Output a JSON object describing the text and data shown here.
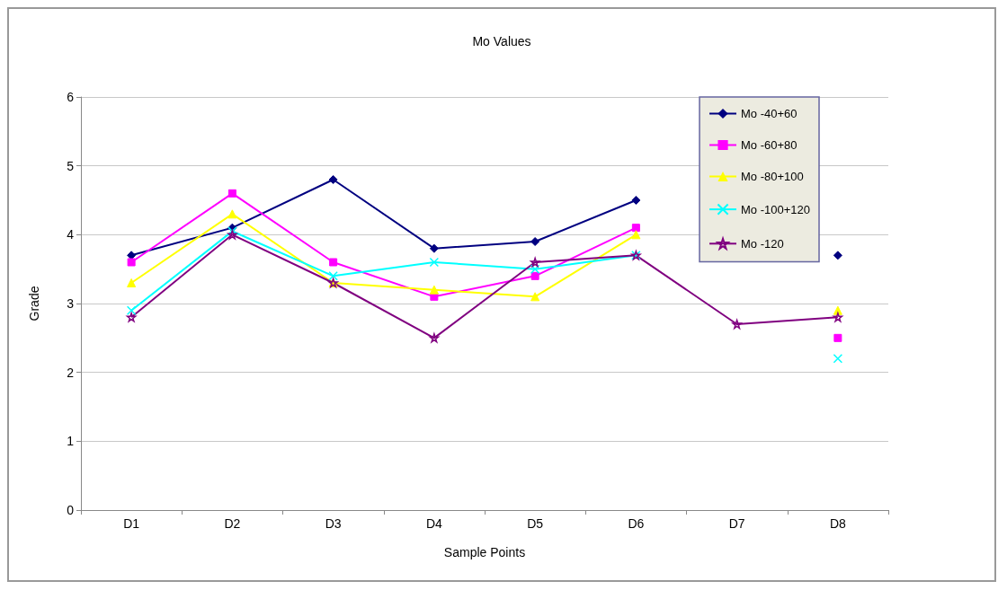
{
  "chart_data": {
    "type": "line",
    "title": "Mo Values",
    "xlabel": "Sample Points",
    "ylabel": "Grade",
    "categories": [
      "D1",
      "D2",
      "D3",
      "D4",
      "D5",
      "D6",
      "D7",
      "D8"
    ],
    "series": [
      {
        "name": "Mo -40+60",
        "color": "#000080",
        "marker": "diamond",
        "values": [
          3.7,
          4.1,
          4.8,
          3.8,
          3.9,
          4.5,
          null,
          3.7
        ]
      },
      {
        "name": "Mo -60+80",
        "color": "#ff00ff",
        "marker": "square",
        "values": [
          3.6,
          4.6,
          3.6,
          3.1,
          3.4,
          4.1,
          null,
          2.5
        ]
      },
      {
        "name": "Mo -80+100",
        "color": "#ffff00",
        "marker": "triangle",
        "values": [
          3.3,
          4.3,
          3.3,
          3.2,
          3.1,
          4.0,
          null,
          2.9
        ]
      },
      {
        "name": "Mo -100+120",
        "color": "#00ffff",
        "marker": "cross",
        "values": [
          2.9,
          4.05,
          3.4,
          3.6,
          3.5,
          3.7,
          null,
          2.2
        ]
      },
      {
        "name": "Mo -120",
        "color": "#800080",
        "marker": "star",
        "values": [
          2.8,
          4.0,
          3.3,
          2.5,
          3.6,
          3.7,
          2.7,
          2.8
        ]
      }
    ],
    "ylim": [
      0,
      6
    ],
    "yticks": [
      0,
      1,
      2,
      3,
      4,
      5,
      6
    ],
    "grid": "y",
    "legend": "top right",
    "line_style": "solid"
  }
}
